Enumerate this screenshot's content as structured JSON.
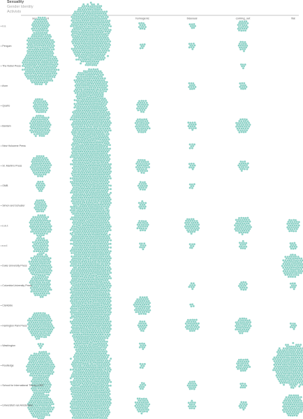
{
  "nav": {
    "items": [
      "Sexuality",
      "Gender Identity",
      "Activists"
    ],
    "active_index": 0
  },
  "colors": {
    "dot": "#88cfc4",
    "dot_stroke": "#ffffff",
    "axis": "#8a8a8a",
    "label": "#555555"
  },
  "chart_data": {
    "type": "scatter",
    "encoding": "dot-swarm; each cluster is a packed group of dots sized by relative count",
    "columns": [
      "sexual_orient",
      "homosexual",
      "homogenic",
      "bisexual",
      "coming_out",
      "flat"
    ],
    "publishers": [
      {
        "name": "n.s.",
        "values": [
          5,
          28,
          1,
          0.6,
          2,
          0
        ]
      },
      {
        "name": "Penguin",
        "values": [
          11,
          22,
          0.5,
          0.8,
          1.6,
          0
        ]
      },
      {
        "name": "The Nobel Press",
        "values": [
          20,
          0,
          0,
          0,
          0.5,
          0
        ]
      },
      {
        "name": "Avon",
        "values": [
          0,
          17,
          0,
          0.9,
          0.9,
          0
        ]
      },
      {
        "name": "Quarto",
        "values": [
          3.5,
          17,
          2.2,
          0,
          0,
          0
        ]
      },
      {
        "name": "Bantam",
        "values": [
          7,
          46,
          3.4,
          1.2,
          3.4,
          0
        ]
      },
      {
        "name": "New Holocene Press",
        "values": [
          0,
          22,
          0,
          0.5,
          0,
          0
        ]
      },
      {
        "name": "St. Martin's Press",
        "values": [
          6.5,
          42,
          2.8,
          0.7,
          1.7,
          0
        ]
      },
      {
        "name": "OMB",
        "values": [
          1.6,
          29,
          1.4,
          0.5,
          0,
          0
        ]
      },
      {
        "name": "Simon and Schuster",
        "values": [
          2.5,
          26,
          1,
          0,
          0,
          0
        ]
      },
      {
        "name": "n.m.f.",
        "values": [
          7.5,
          36,
          2,
          3.5,
          4.5,
          2.7
        ]
      },
      {
        "name": "n.n.f.",
        "values": [
          4,
          33,
          0.7,
          0.5,
          1,
          0.9
        ]
      },
      {
        "name": "Duke University Press",
        "values": [
          8.5,
          38,
          0,
          0,
          0,
          8
        ]
      },
      {
        "name": "Columbia University Press",
        "values": [
          7.5,
          38,
          0,
          0.8,
          1.3,
          0.7
        ]
      },
      {
        "name": "Clarkside",
        "values": [
          0,
          51,
          5,
          0.4,
          0,
          0
        ]
      },
      {
        "name": "Harrington Park Press",
        "values": [
          10,
          29,
          1.6,
          2.8,
          3.8,
          0.7
        ]
      },
      {
        "name": "Washington",
        "values": [
          0.5,
          17,
          0.7,
          0,
          0,
          0
        ]
      },
      {
        "name": "Routledge",
        "values": [
          12,
          27,
          0.5,
          0,
          2.8,
          26
        ]
      },
      {
        "name": "School for International Theory LGBT",
        "values": [
          6.5,
          28,
          0.8,
          1.5,
          0.6,
          0.5
        ]
      },
      {
        "name": "Universiteit van Amsterdam",
        "values": [
          10,
          34,
          3.6,
          1,
          1.2,
          7
        ]
      }
    ]
  }
}
